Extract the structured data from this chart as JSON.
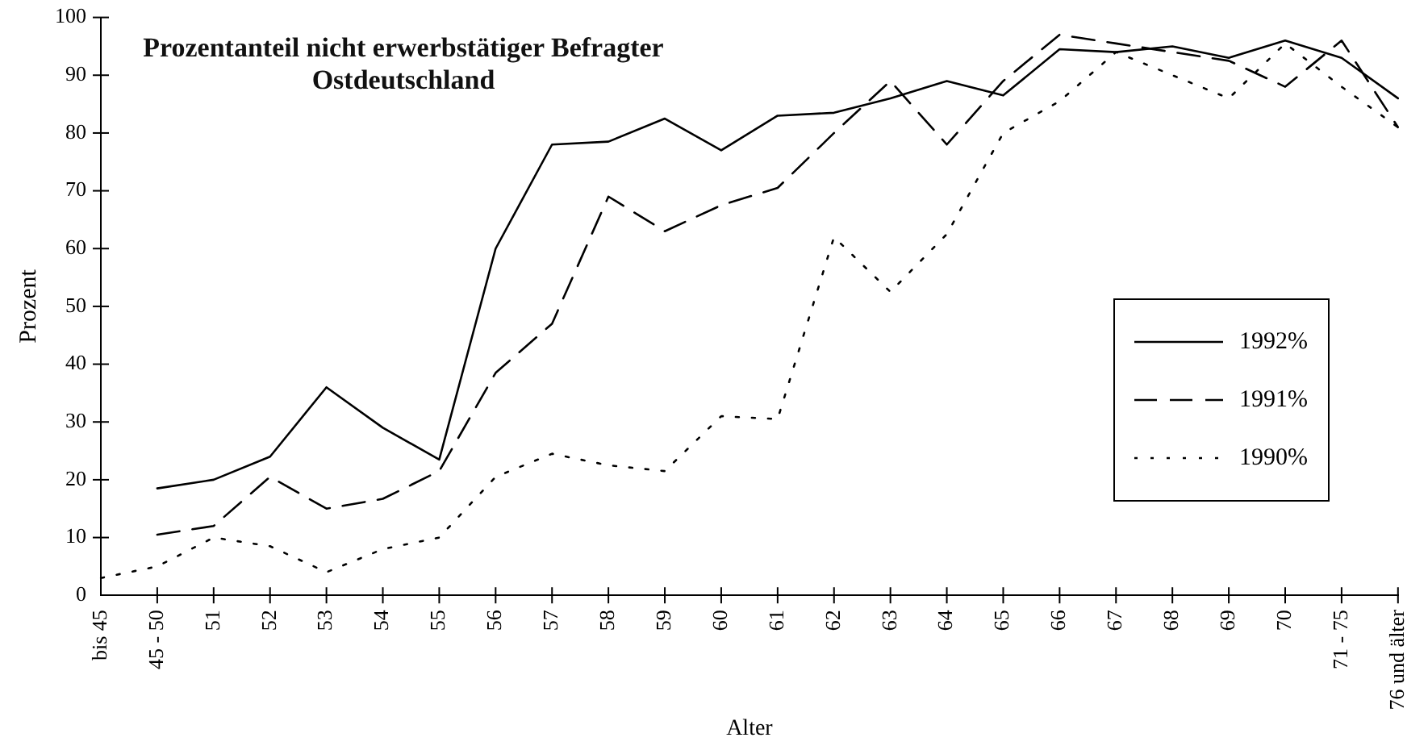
{
  "chart_data": {
    "type": "line",
    "title": "Prozentanteil nicht erwerbstätiger Befragter\nOstdeutschland",
    "xlabel": "Alter",
    "ylabel": "Prozent",
    "categories": [
      "bis 45",
      "45 - 50",
      "51",
      "52",
      "53",
      "54",
      "55",
      "56",
      "57",
      "58",
      "59",
      "60",
      "61",
      "62",
      "63",
      "64",
      "65",
      "66",
      "67",
      "68",
      "69",
      "70",
      "71 - 75",
      "76 und älter"
    ],
    "series": [
      {
        "name": "1992%",
        "color": "#000000",
        "line_style": "solid",
        "values": [
          null,
          18.5,
          20,
          24,
          36,
          29,
          23.5,
          60,
          78,
          78.5,
          82.5,
          77,
          83,
          83.5,
          86,
          89,
          86.5,
          94.5,
          94,
          95,
          93,
          96,
          93,
          86
        ]
      },
      {
        "name": "1991%",
        "color": "#000000",
        "line_style": "dashed",
        "values": [
          null,
          10.5,
          12,
          20.5,
          15,
          16.7,
          21.5,
          38.5,
          47,
          69,
          63,
          67.5,
          70.5,
          80,
          89,
          78,
          89,
          97,
          95.5,
          94,
          92.5,
          88,
          96,
          81
        ]
      },
      {
        "name": "1990%",
        "color": "#000000",
        "line_style": "dotted",
        "values": [
          3,
          5,
          10,
          8.5,
          4,
          8,
          10,
          20.5,
          24.5,
          22.5,
          21.5,
          31,
          30.5,
          62,
          52.5,
          62.5,
          80,
          85.5,
          94,
          90,
          86,
          95.5,
          88,
          81
        ]
      }
    ],
    "ylim": [
      0,
      100
    ],
    "yticks": [
      0,
      10,
      20,
      30,
      40,
      50,
      60,
      70,
      80,
      90,
      100
    ],
    "grid": false,
    "legend": "right",
    "marker": "none"
  }
}
